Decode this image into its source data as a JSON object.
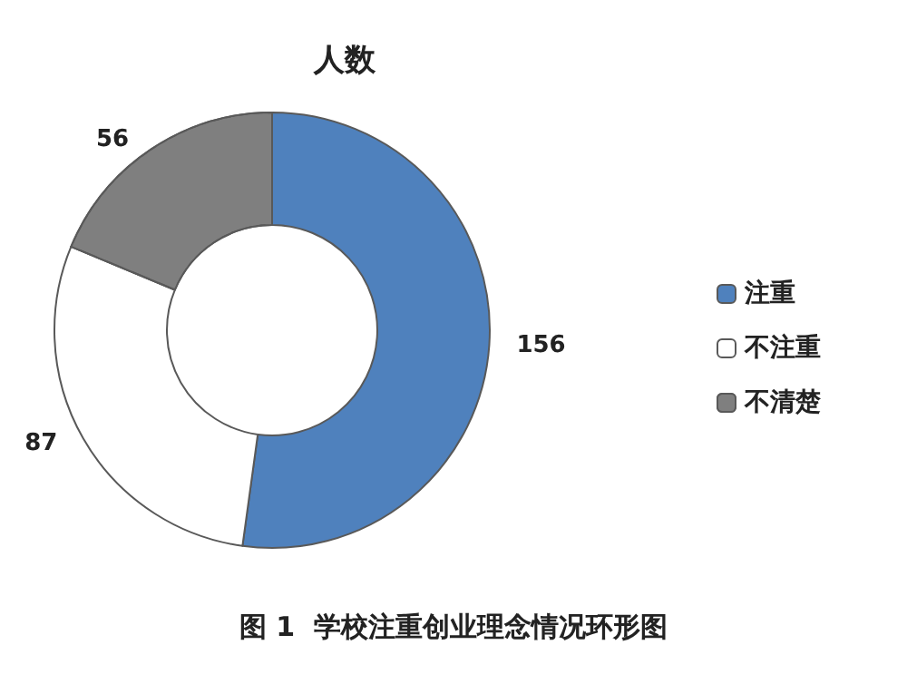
{
  "chart_data": {
    "type": "donut",
    "title": "人数",
    "categories": [
      "注重",
      "不注重",
      "不清楚"
    ],
    "values": [
      156,
      87,
      56
    ],
    "colors": [
      "#4f81bd",
      "#ffffff",
      "#7f7f7f"
    ],
    "data_labels": true,
    "legend": "right",
    "annotations": [
      "图 1  学校注重创业理念情况环形图"
    ]
  }
}
